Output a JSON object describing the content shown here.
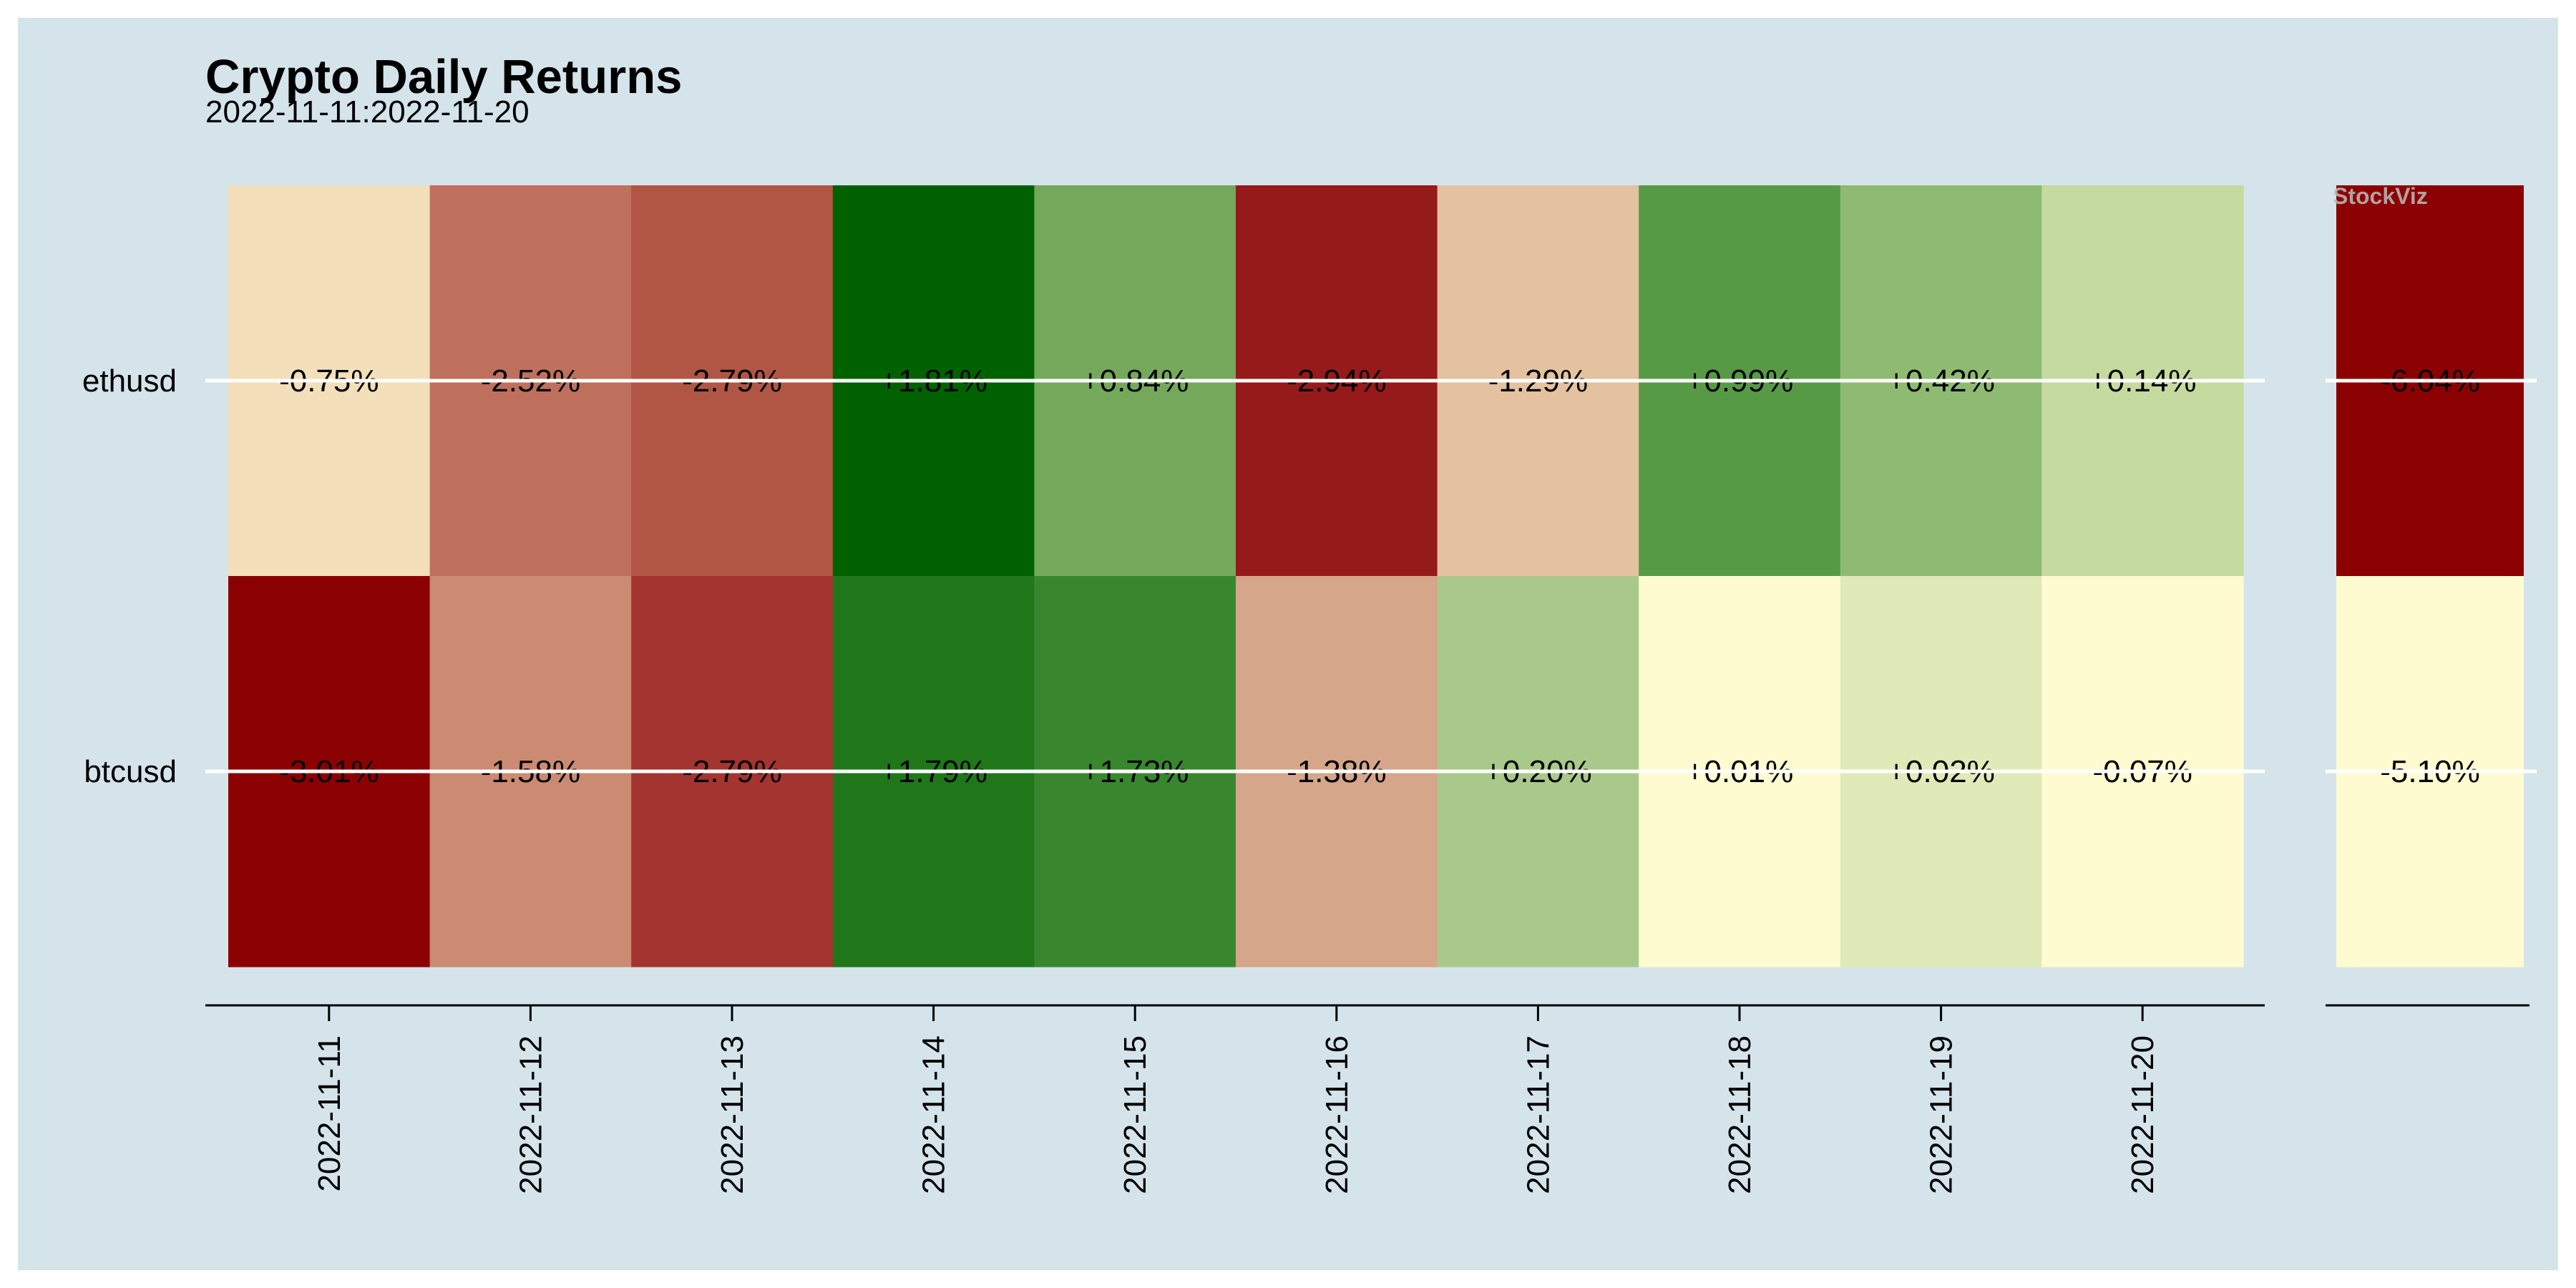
{
  "chart_data": {
    "type": "heatmap",
    "title": "Crypto Daily Returns",
    "subtitle": "2022-11-11:2022-11-20",
    "rows": [
      "ethusd",
      "btcusd"
    ],
    "columns": [
      "2022-11-11",
      "2022-11-12",
      "2022-11-13",
      "2022-11-14",
      "2022-11-15",
      "2022-11-16",
      "2022-11-17",
      "2022-11-18",
      "2022-11-19",
      "2022-11-20"
    ],
    "values": [
      [
        -0.75,
        -2.52,
        -2.79,
        1.81,
        0.84,
        -2.94,
        -1.29,
        0.99,
        0.42,
        0.14
      ],
      [
        -3.01,
        -1.58,
        -2.79,
        1.79,
        1.73,
        -1.38,
        0.2,
        0.01,
        0.02,
        -0.07
      ]
    ],
    "labels": [
      [
        "-0.75%",
        "-2.52%",
        "-2.79%",
        "+1.81%",
        "+0.84%",
        "-2.94%",
        "-1.29%",
        "+0.99%",
        "+0.42%",
        "+0.14%"
      ],
      [
        "-3.01%",
        "-1.58%",
        "-2.79%",
        "+1.79%",
        "+1.73%",
        "-1.38%",
        "+0.20%",
        "+0.01%",
        "+0.02%",
        "-0.07%"
      ]
    ],
    "colors": [
      [
        "#f3dfb9",
        "#bf705c",
        "#b15545",
        "#006100",
        "#74a95c",
        "#961a1a",
        "#e4c19f",
        "#579a46",
        "#8ebb71",
        "#c5da9f"
      ],
      [
        "#8b0000",
        "#cb8a72",
        "#a33430",
        "#1f771a",
        "#38872e",
        "#d5a689",
        "#a9c98a",
        "#fefbd1",
        "#e0eab8",
        "#fefbd1"
      ]
    ],
    "total_values": [
      -6.04,
      -5.1
    ],
    "total_labels": [
      "-6.04%",
      "-5.10%"
    ],
    "total_colors": [
      "#8b0000",
      "#fefbd1"
    ],
    "watermark": "StockViz",
    "colors_scale": {
      "negative": "#8b0000",
      "neutral": "#fefbd1",
      "positive": "#006100"
    },
    "background": "#d5e4eb"
  }
}
